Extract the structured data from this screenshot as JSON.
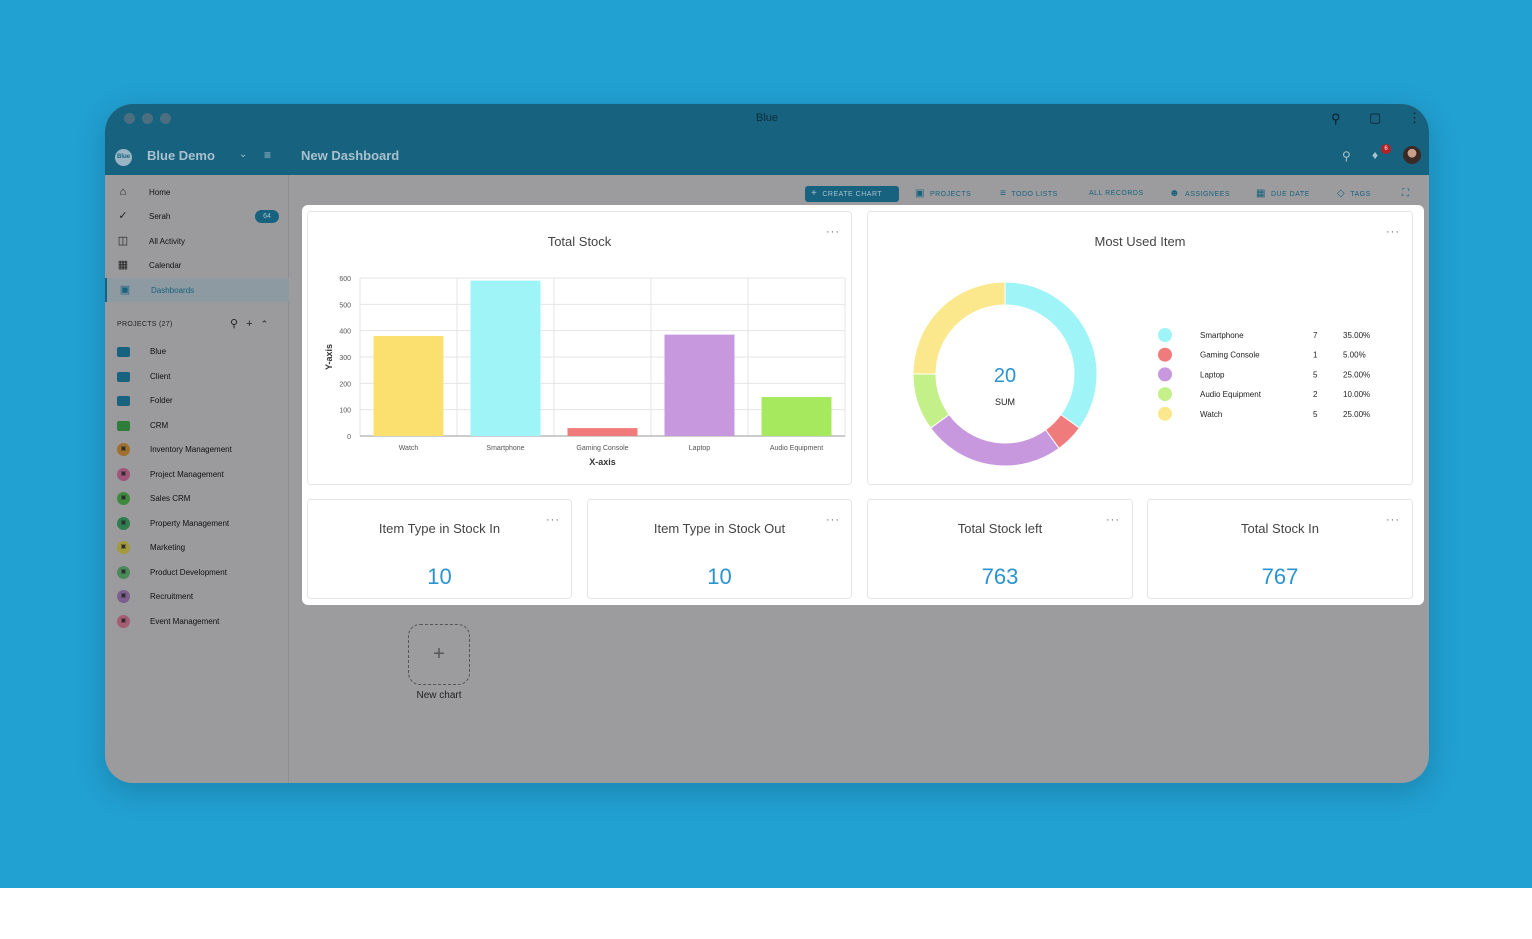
{
  "window": {
    "title": "Blue"
  },
  "header": {
    "workspace": "Blue Demo",
    "logo_text": "Blue",
    "page_title": "New Dashboard",
    "notification_count": "6"
  },
  "sidebar": {
    "items": [
      {
        "label": "Home",
        "icon": "home-icon"
      },
      {
        "label": "Serah",
        "icon": "check-circle-icon",
        "badge": "64"
      },
      {
        "label": "All Activity",
        "icon": "activity-icon"
      },
      {
        "label": "Calendar",
        "icon": "calendar-icon"
      },
      {
        "label": "Dashboards",
        "icon": "dashboard-icon"
      }
    ],
    "projects_header": "PROJECTS (27)",
    "projects": [
      {
        "label": "Blue",
        "type": "folder",
        "color": "#17627f"
      },
      {
        "label": "Client",
        "type": "folder",
        "color": "#17627f"
      },
      {
        "label": "Folder",
        "type": "folder",
        "color": "#17627f"
      },
      {
        "label": "CRM",
        "type": "folder",
        "color": "#2f7d3a"
      },
      {
        "label": "Inventory Management",
        "type": "circle",
        "color": "#a0702f"
      },
      {
        "label": "Project Management",
        "type": "circle",
        "color": "#a0557a"
      },
      {
        "label": "Sales CRM",
        "type": "circle",
        "color": "#3d8a3f"
      },
      {
        "label": "Property Management",
        "type": "circle",
        "color": "#2e7d4e"
      },
      {
        "label": "Marketing",
        "type": "circle",
        "color": "#a39a3c"
      },
      {
        "label": "Product Development",
        "type": "circle",
        "color": "#4c8a5a"
      },
      {
        "label": "Recruitment",
        "type": "circle",
        "color": "#7e5e8e"
      },
      {
        "label": "Event Management",
        "type": "circle",
        "color": "#a65d74"
      }
    ]
  },
  "toolbar": {
    "create_chart": "CREATE CHART",
    "projects": "PROJECTS",
    "todo_lists": "TODO LISTS",
    "all_records": "ALL RECORDS",
    "assignees": "ASSIGNEES",
    "due_date": "DUE DATE",
    "tags": "TAGS"
  },
  "cards": {
    "total_stock": {
      "title": "Total Stock"
    },
    "most_used": {
      "title": "Most Used Item",
      "center_value": "20",
      "center_label": "SUM"
    },
    "stock_in_types": {
      "title": "Item Type in Stock In",
      "value": "10"
    },
    "stock_out_types": {
      "title": "Item Type in Stock Out",
      "value": "10"
    },
    "stock_left": {
      "title": "Total Stock left",
      "value": "763"
    },
    "stock_in": {
      "title": "Total Stock In",
      "value": "767"
    }
  },
  "new_chart_label": "New chart",
  "chart_data": [
    {
      "type": "bar",
      "title": "Total Stock",
      "categories": [
        "Watch",
        "Smartphone",
        "Gaming Console",
        "Laptop",
        "Audio Equipment"
      ],
      "values": [
        380,
        590,
        30,
        385,
        148
      ],
      "colors": [
        "#fbe070",
        "#9ff4f7",
        "#f07b7c",
        "#c898de",
        "#a6e95e"
      ],
      "xlabel": "X-axis",
      "ylabel": "Y-axis",
      "ylim": [
        0,
        600
      ],
      "yticks": [
        0,
        100,
        200,
        300,
        400,
        500,
        600
      ],
      "grid": true
    },
    {
      "type": "pie",
      "title": "Most Used Item",
      "labels": [
        "Smartphone",
        "Gaming Console",
        "Laptop",
        "Audio Equipment",
        "Watch"
      ],
      "values": [
        7,
        1,
        5,
        2,
        5
      ],
      "percents": [
        "35.00%",
        "5.00%",
        "25.00%",
        "10.00%",
        "25.00%"
      ],
      "colors": [
        "#9ff4f7",
        "#f07b7c",
        "#c898de",
        "#c4f08a",
        "#fbe88c"
      ],
      "legend": "right"
    }
  ]
}
